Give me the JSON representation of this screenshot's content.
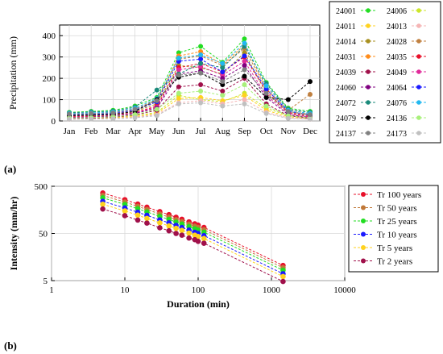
{
  "panel_a_label": "(a)",
  "panel_b_label": "(b)",
  "chart_data": [
    {
      "type": "line",
      "ylabel": "Precipitation (mm)",
      "xlabel": "",
      "categories": [
        "Jan",
        "Feb",
        "Mar",
        "Apr",
        "May",
        "Jun",
        "Jul",
        "Aug",
        "Sep",
        "Oct",
        "Nov",
        "Dec"
      ],
      "ylim": [
        0,
        450
      ],
      "yticks": [
        0,
        100,
        200,
        300,
        400
      ],
      "grid": true,
      "legend_position": "right",
      "series": [
        {
          "name": "24001",
          "color": "#22dd22",
          "values": [
            40,
            45,
            50,
            70,
            110,
            320,
            350,
            275,
            385,
            180,
            60,
            45
          ]
        },
        {
          "name": "24006",
          "color": "#cce62a",
          "values": [
            15,
            15,
            18,
            25,
            40,
            120,
            100,
            90,
            130,
            60,
            25,
            15
          ]
        },
        {
          "name": "24011",
          "color": "#ffd21f",
          "values": [
            10,
            12,
            15,
            20,
            35,
            105,
            110,
            95,
            120,
            50,
            20,
            10
          ]
        },
        {
          "name": "24013",
          "color": "#f5b5b5",
          "values": [
            8,
            10,
            12,
            18,
            30,
            85,
            95,
            80,
            100,
            40,
            15,
            8
          ]
        },
        {
          "name": "24014",
          "color": "#a89020",
          "values": [
            22,
            25,
            30,
            45,
            80,
            260,
            250,
            220,
            320,
            130,
            40,
            25
          ]
        },
        {
          "name": "24028",
          "color": "#c08040",
          "values": [
            30,
            35,
            40,
            55,
            100,
            290,
            305,
            260,
            340,
            150,
            50,
            125
          ]
        },
        {
          "name": "24031",
          "color": "#ff8c1a",
          "values": [
            25,
            28,
            32,
            50,
            90,
            305,
            325,
            265,
            355,
            160,
            55,
            30
          ]
        },
        {
          "name": "24035",
          "color": "#e8102a",
          "values": [
            20,
            22,
            25,
            40,
            70,
            250,
            270,
            230,
            300,
            140,
            40,
            20
          ]
        },
        {
          "name": "24039",
          "color": "#a0104a",
          "values": [
            12,
            14,
            18,
            28,
            50,
            160,
            170,
            140,
            200,
            80,
            25,
            12
          ]
        },
        {
          "name": "24049",
          "color": "#e02a9a",
          "values": [
            18,
            20,
            24,
            38,
            65,
            240,
            255,
            215,
            280,
            120,
            35,
            18
          ]
        },
        {
          "name": "24060",
          "color": "#800080",
          "values": [
            16,
            18,
            22,
            35,
            60,
            220,
            235,
            200,
            260,
            110,
            30,
            16
          ]
        },
        {
          "name": "24064",
          "color": "#1a1aff",
          "values": [
            28,
            30,
            35,
            50,
            90,
            280,
            290,
            230,
            305,
            150,
            45,
            28
          ]
        },
        {
          "name": "24072",
          "color": "#1a8a7a",
          "values": [
            38,
            42,
            46,
            65,
            145,
            220,
            270,
            250,
            350,
            175,
            55,
            40
          ]
        },
        {
          "name": "24076",
          "color": "#22b8f0",
          "values": [
            35,
            38,
            42,
            60,
            105,
            295,
            310,
            270,
            365,
            165,
            50,
            35
          ]
        },
        {
          "name": "24079",
          "color": "#000000",
          "values": [
            25,
            28,
            30,
            45,
            100,
            205,
            225,
            170,
            210,
            110,
            100,
            185
          ]
        },
        {
          "name": "24136",
          "color": "#a8f07a",
          "values": [
            14,
            16,
            20,
            30,
            55,
            130,
            140,
            120,
            170,
            70,
            25,
            14
          ]
        },
        {
          "name": "24137",
          "color": "#808080",
          "values": [
            32,
            35,
            38,
            55,
            95,
            215,
            225,
            185,
            240,
            130,
            45,
            30
          ]
        },
        {
          "name": "24173",
          "color": "#c0c0c0",
          "values": [
            8,
            9,
            10,
            15,
            25,
            80,
            85,
            70,
            80,
            35,
            12,
            8
          ]
        }
      ]
    },
    {
      "type": "line",
      "xscale": "log",
      "yscale": "log",
      "xlabel": "Duration (min)",
      "ylabel": "Intensity (mm/hr)",
      "xlim": [
        1,
        10000
      ],
      "ylim": [
        5,
        500
      ],
      "xticks": [
        1,
        10,
        100,
        1000,
        10000
      ],
      "yticks": [
        5,
        50,
        500
      ],
      "grid": true,
      "legend_position": "right",
      "x": [
        5,
        10,
        15,
        20,
        30,
        40,
        50,
        60,
        75,
        90,
        100,
        120,
        1440
      ],
      "series": [
        {
          "name": "Tr 100 years",
          "color": "#e8102a",
          "values": [
            360,
            260,
            210,
            180,
            145,
            125,
            110,
            100,
            88,
            80,
            75,
            67,
            10.5
          ]
        },
        {
          "name": "Tr 50 years",
          "color": "#c07838",
          "values": [
            320,
            232,
            188,
            161,
            129,
            111,
            98,
            89,
            79,
            71,
            67,
            60,
            9.4
          ]
        },
        {
          "name": "Tr 25 years",
          "color": "#22dd22",
          "values": [
            285,
            206,
            167,
            143,
            115,
            99,
            87,
            79,
            70,
            63,
            59,
            53,
            8.3
          ]
        },
        {
          "name": "Tr 10 years",
          "color": "#1a1aff",
          "values": [
            240,
            174,
            141,
            121,
            97,
            84,
            74,
            67,
            59,
            53,
            50,
            45,
            7.0
          ]
        },
        {
          "name": "Tr 5 years",
          "color": "#ffd21f",
          "values": [
            208,
            150,
            122,
            104,
            84,
            72,
            64,
            58,
            51,
            46,
            43,
            39,
            6.1
          ]
        },
        {
          "name": "Tr 2 years",
          "color": "#a0104a",
          "values": [
            165,
            119,
            96,
            83,
            66,
            57,
            50,
            46,
            40,
            37,
            34,
            31,
            4.8
          ]
        }
      ]
    }
  ]
}
